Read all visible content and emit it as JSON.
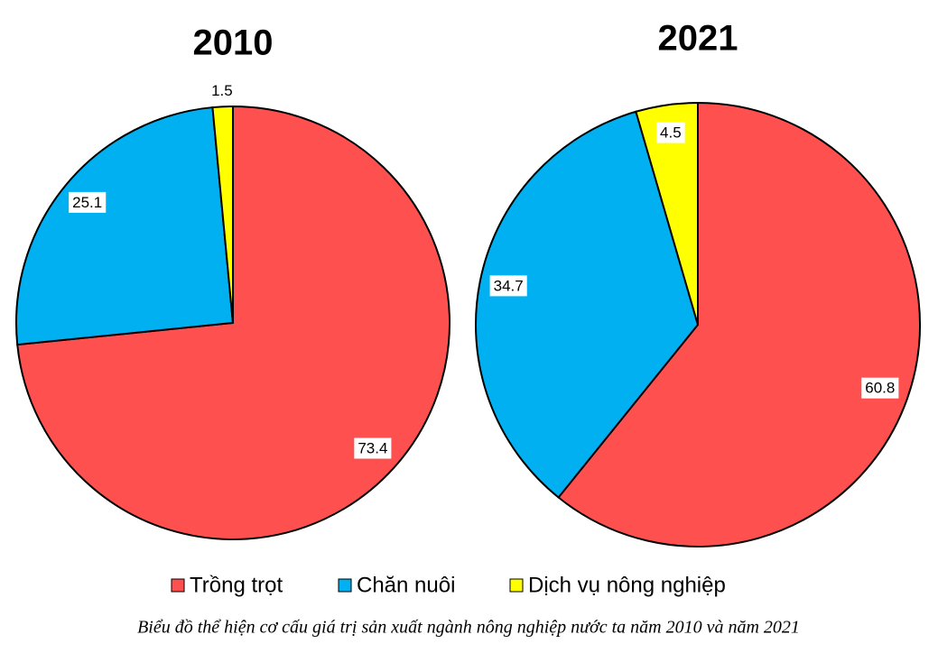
{
  "legend": {
    "categories": [
      "Trồng trọt",
      "Chăn nuôi",
      "Dịch vụ nông nghiệp"
    ],
    "colors": [
      "#ff5050",
      "#00b0f0",
      "#ffff00"
    ]
  },
  "chart_data": [
    {
      "type": "pie",
      "title": "2010",
      "values": [
        73.4,
        25.1,
        1.5
      ]
    },
    {
      "type": "pie",
      "title": "2021",
      "values": [
        60.8,
        34.7,
        4.5
      ]
    }
  ],
  "caption": "Biểu đồ thể hiện cơ cấu giá trị sản xuất ngành nông nghiệp nước ta năm 2010 và năm 2021"
}
